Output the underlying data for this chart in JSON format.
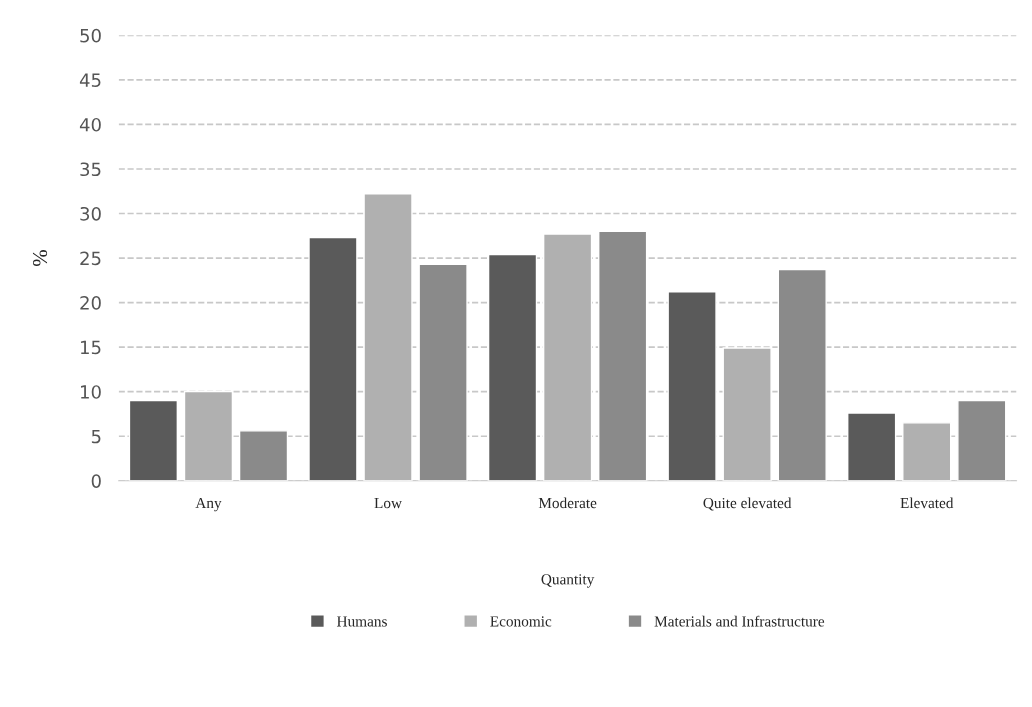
{
  "chart_data": {
    "type": "bar",
    "xlabel": "Quantity",
    "ylabel": "%",
    "categories": [
      "Any",
      "Low",
      "Moderate",
      "Quite elevated",
      "Elevated"
    ],
    "series": [
      {
        "name": "Humans",
        "color": "#5a5a5a",
        "values": [
          9,
          27.3,
          25.4,
          21.2,
          7.6
        ]
      },
      {
        "name": "Economic",
        "color": "#b0b0b0",
        "values": [
          10,
          32.2,
          27.7,
          14.9,
          6.5
        ]
      },
      {
        "name": "Materials and Infrastructure",
        "color": "#8a8a8a",
        "values": [
          5.6,
          24.3,
          28,
          23.7,
          9
        ]
      }
    ],
    "ylim": [
      0,
      50
    ],
    "yticks": [
      0,
      5,
      10,
      15,
      20,
      25,
      30,
      35,
      40,
      45,
      50
    ],
    "grid": "y",
    "legend": "bottom"
  }
}
